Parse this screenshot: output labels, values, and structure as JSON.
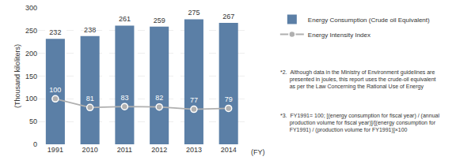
{
  "chart_data": {
    "type": "bar",
    "categories": [
      "1991",
      "2010",
      "2011",
      "2012",
      "2013",
      "2014"
    ],
    "series": [
      {
        "name": "Energy Consumption (Crude oil Equivalent)",
        "type": "bar",
        "color": "#5b7fa6",
        "values": [
          232,
          238,
          261,
          259,
          275,
          267
        ]
      },
      {
        "name": "Energy Intensity Index",
        "type": "line",
        "color": "#b0b0b0",
        "marker": "circle",
        "values": [
          100,
          81,
          83,
          82,
          77,
          79
        ]
      }
    ],
    "ylabel": "(Thousand kiloliters)",
    "xlabel": "(FY)",
    "ylim": [
      0,
      300
    ],
    "yticks": [
      0,
      50,
      100,
      150,
      200,
      250,
      300
    ],
    "grid": true,
    "data_labels": true,
    "annotations": [
      "*2.  Although data in the Ministry of Environment guidelines are\n      presented in joules, this report uses the crude-oil equivalent\n      as per the Law Concerning the Rational Use of Energy",
      "*3.  FY1991= 100; [(energy consumption for fiscal year) / (annual\n      production volume for fiscal year)]/[(energy consumption for\n      FY1991) / (production volume for FY1991)]×100"
    ]
  }
}
